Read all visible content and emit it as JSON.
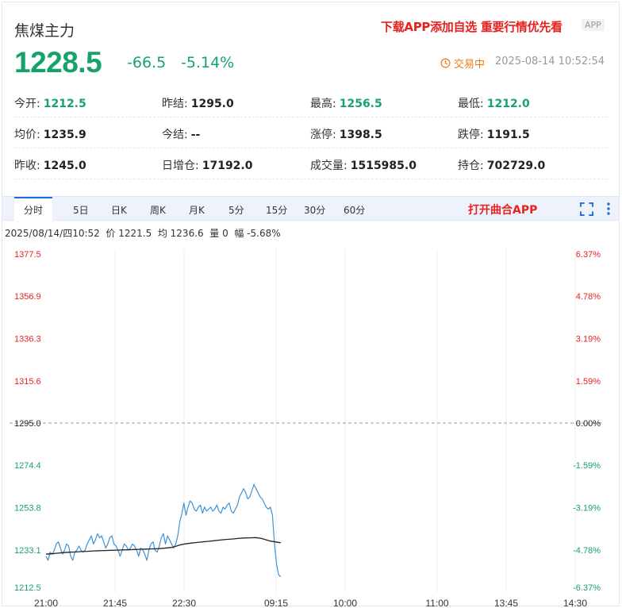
{
  "header": {
    "title": "焦煤主力",
    "promo": "下载APP添加自选 重要行情优先看",
    "app_badge": "APP",
    "price": "1228.5",
    "change": "-66.5",
    "change_pct": "-5.14%",
    "status": "交易中",
    "datetime": "2025-08-14 10:52:54"
  },
  "stats": [
    [
      {
        "label": "今开:",
        "value": "1212.5",
        "color": "green"
      },
      {
        "label": "昨结:",
        "value": "1295.0",
        "color": "black"
      },
      {
        "label": "最高:",
        "value": "1256.5",
        "color": "green"
      },
      {
        "label": "最低:",
        "value": "1212.0",
        "color": "green"
      }
    ],
    [
      {
        "label": "均价:",
        "value": "1235.9",
        "color": "black"
      },
      {
        "label": "今结:",
        "value": "--",
        "color": "black"
      },
      {
        "label": "涨停:",
        "value": "1398.5",
        "color": "black"
      },
      {
        "label": "跌停:",
        "value": "1191.5",
        "color": "black"
      }
    ],
    [
      {
        "label": "昨收:",
        "value": "1245.0",
        "color": "black"
      },
      {
        "label": "日增仓:",
        "value": "17192.0",
        "color": "black"
      },
      {
        "label": "成交量:",
        "value": "1515985.0",
        "color": "black"
      },
      {
        "label": "持仓:",
        "value": "702729.0",
        "color": "black"
      }
    ]
  ],
  "toolbar": {
    "tabs": [
      "分时",
      "5日",
      "日K",
      "周K",
      "月K",
      "5分",
      "15分",
      "30分",
      "60分"
    ],
    "active_tab": "分时",
    "open_app": "打开曲合APP"
  },
  "infobar": "2025/08/14/四10:52  价 1221.5  均 1236.6  量 0  幅 -5.68%",
  "colors": {
    "up": "#e8211e",
    "down": "#16a36b",
    "price_line": "#3f93d6",
    "avg_line": "#222222",
    "accent": "#1c6fd6",
    "status": "#f07b1a"
  },
  "chart_data": {
    "type": "line",
    "title": "",
    "xlabel": "",
    "ylabel": "",
    "reference_price": 1295.0,
    "ylim": [
      1212.5,
      1377.5
    ],
    "y_ticks_left": [
      "1377.5",
      "1356.9",
      "1336.3",
      "1315.6",
      "1295.0",
      "1274.4",
      "1253.8",
      "1233.1",
      "1212.5"
    ],
    "y_ticks_right": [
      "6.37%",
      "4.78%",
      "3.19%",
      "1.59%",
      "0.00%",
      "-1.59%",
      "-3.19%",
      "-4.78%",
      "-6.37%"
    ],
    "x_ticks": [
      "21:00",
      "21:45",
      "22:30",
      "09:15",
      "10:00",
      "11:00",
      "13:45",
      "14:30"
    ],
    "session_minutes": 345,
    "grid": true,
    "series": [
      {
        "values": [
          1230,
          1228,
          1232,
          1231,
          1233,
          1236,
          1237,
          1234,
          1231,
          1233,
          1236,
          1235,
          1230,
          1228,
          1232,
          1233,
          1235,
          1233,
          1232,
          1233,
          1236,
          1238,
          1240,
          1236,
          1238,
          1241,
          1239,
          1240,
          1237,
          1234,
          1236,
          1239,
          1240,
          1236,
          1235,
          1233,
          1230,
          1233,
          1236,
          1235,
          1233,
          1234,
          1236,
          1235,
          1233,
          1230,
          1234,
          1233,
          1231,
          1228,
          1233,
          1236,
          1237,
          1233,
          1232,
          1235,
          1239,
          1241,
          1236,
          1240,
          1238,
          1236,
          1234,
          1236,
          1240,
          1247,
          1251,
          1256,
          1250,
          1254,
          1257,
          1256,
          1253,
          1252,
          1254,
          1255,
          1251,
          1254,
          1252,
          1253,
          1254,
          1252,
          1253,
          1255,
          1252,
          1251,
          1254,
          1253,
          1255,
          1256,
          1252,
          1251,
          1253,
          1255,
          1259,
          1261,
          1263,
          1261,
          1258,
          1259,
          1262,
          1265,
          1263,
          1261,
          1259,
          1258,
          1256,
          1254,
          1253,
          1254,
          1250,
          1236,
          1226,
          1221,
          1220
        ],
        "start_minute": 0
      },
      {
        "values": [
          1231.0,
          1231.2,
          1231.5,
          1231.8,
          1232.0,
          1232.1,
          1232.3,
          1232.4,
          1232.6,
          1232.7,
          1232.8,
          1232.9,
          1233.0,
          1233.1,
          1233.2,
          1233.3,
          1233.4,
          1233.5,
          1233.6,
          1233.7,
          1233.9,
          1234.3,
          1234.9,
          1235.6,
          1236.0,
          1236.4,
          1236.7,
          1237.0,
          1237.3,
          1237.6,
          1237.9,
          1238.2,
          1238.4,
          1238.7,
          1238.9,
          1239.0,
          1239.1,
          1238.7,
          1237.4,
          1236.6
        ],
        "x_minutes": [
          0,
          8,
          16,
          24,
          32,
          40,
          48,
          56,
          64,
          72,
          80,
          88,
          96,
          104,
          112,
          120,
          128,
          136,
          144,
          152,
          160,
          170,
          176,
          182,
          188,
          196,
          204,
          212,
          220,
          228,
          236,
          244,
          252,
          260,
          268,
          276,
          284,
          292,
          304,
          318
        ]
      }
    ]
  }
}
